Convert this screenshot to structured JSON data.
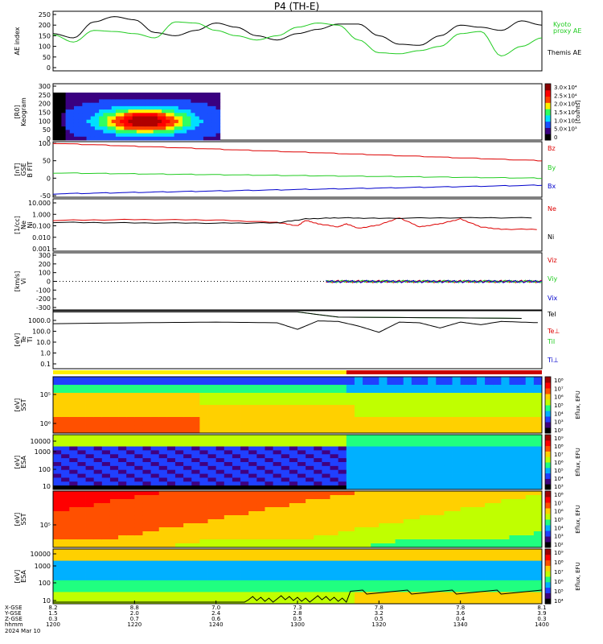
{
  "title": "P4 (TH-E)",
  "date_label": "2024 Mar 10",
  "ephemeris_labels": [
    "X-GSE",
    "Y-GSE",
    "Z-GSE",
    "hhmm"
  ],
  "ephemeris": {
    "X": [
      "8.2",
      "8.8",
      "7.0",
      "7.3",
      "7.8",
      "7.8",
      "8.1"
    ],
    "Y": [
      "1.5",
      "2.0",
      "2.4",
      "2.8",
      "3.2",
      "3.6",
      "3.9"
    ],
    "Z": [
      "0.3",
      "0.7",
      "0.6",
      "0.5",
      "0.5",
      "0.4",
      "0.3"
    ],
    "hhmm": [
      "1200",
      "1220",
      "1240",
      "1300",
      "1320",
      "1340",
      "1400"
    ]
  },
  "colors": {
    "black": "#000000",
    "green": "#22cc22",
    "red": "#dd0000",
    "blue": "#0000cc",
    "yellow": "#ffee00"
  },
  "chart_data": [
    {
      "type": "line",
      "panel": "ae",
      "ylabel": "AE index",
      "ylim": [
        0,
        250
      ],
      "yticks": [
        "0",
        "50",
        "100",
        "150",
        "200",
        "250"
      ],
      "series": [
        {
          "name": "Themis AE",
          "color": "black",
          "x": [
            0,
            5,
            10,
            15,
            20,
            25,
            30,
            35,
            40,
            45,
            50,
            55,
            60,
            65,
            70,
            75,
            80,
            85,
            90,
            95,
            100,
            105,
            110,
            115,
            120
          ],
          "values": [
            160,
            140,
            215,
            240,
            225,
            165,
            150,
            175,
            210,
            190,
            150,
            130,
            160,
            180,
            205,
            205,
            150,
            110,
            105,
            150,
            200,
            190,
            175,
            220,
            200
          ]
        },
        {
          "name": "Kyoto proxy AE",
          "color": "green",
          "x": [
            0,
            5,
            10,
            15,
            20,
            25,
            30,
            35,
            40,
            45,
            50,
            55,
            60,
            65,
            70,
            75,
            80,
            85,
            90,
            95,
            100,
            105,
            110,
            115,
            120
          ],
          "values": [
            155,
            120,
            175,
            170,
            160,
            140,
            215,
            210,
            175,
            150,
            130,
            150,
            190,
            210,
            200,
            130,
            70,
            65,
            80,
            100,
            160,
            170,
            55,
            100,
            140
          ]
        }
      ],
      "legend": [
        "Kyoto",
        "proxy AE",
        "Themis AE"
      ]
    },
    {
      "type": "heatmap",
      "panel": "keogram",
      "ylabel": "Keogram",
      "ylabel2": "[R0]",
      "ylim": [
        0,
        300
      ],
      "yticks": [
        "0",
        "50",
        "100",
        "150",
        "200",
        "250",
        "300"
      ],
      "colorbar_labels": [
        "3.0×10⁴",
        "2.5×10⁴",
        "2.0×10⁴",
        "1.5×10⁴",
        "1.0×10⁴",
        "5.0×10³",
        "0"
      ],
      "colorbar_title": "[counts]"
    },
    {
      "type": "line",
      "panel": "bfield",
      "ylabel": "B FIT",
      "ylabel2": "GSE",
      "ylabel3": "[nT]",
      "ylim": [
        -50,
        100
      ],
      "yticks": [
        "-50",
        "0",
        "50",
        "100"
      ],
      "series": [
        {
          "name": "Bz",
          "color": "red",
          "x": [
            0,
            120
          ],
          "values": [
            100,
            50
          ]
        },
        {
          "name": "By",
          "color": "green",
          "x": [
            0,
            120
          ],
          "values": [
            15,
            0
          ]
        },
        {
          "name": "Bx",
          "color": "blue",
          "x": [
            0,
            120
          ],
          "values": [
            -45,
            -20
          ]
        }
      ]
    },
    {
      "type": "line",
      "panel": "density",
      "ylabel": "Ni",
      "ylabel2": "Ne",
      "ylabel3": "[1/cc]",
      "ylim_log": [
        0.001,
        10
      ],
      "yticks": [
        "0.001",
        "0.010",
        "0.100",
        "1.000",
        "10.000"
      ],
      "series": [
        {
          "name": "Ne",
          "color": "red",
          "x": [
            0,
            20,
            40,
            55,
            60,
            62,
            65,
            70,
            72,
            75,
            80,
            85,
            90,
            95,
            100,
            105,
            110,
            120
          ],
          "values": [
            0.3,
            0.35,
            0.32,
            0.2,
            0.1,
            0.3,
            0.15,
            0.08,
            0.15,
            0.06,
            0.12,
            0.5,
            0.08,
            0.15,
            0.4,
            0.08,
            0.05,
            0.05
          ]
        },
        {
          "name": "Ni",
          "color": "black",
          "x": [
            0,
            20,
            40,
            55,
            62,
            70,
            80,
            100,
            120
          ],
          "values": [
            0.2,
            0.18,
            0.17,
            0.18,
            0.4,
            0.5,
            0.45,
            0.5,
            0.5
          ]
        }
      ]
    },
    {
      "type": "line",
      "panel": "velocity",
      "ylabel": "Vi",
      "ylabel2": "[km/s]",
      "ylim": [
        -300,
        300
      ],
      "yticks": [
        "-300",
        "-200",
        "-100",
        "0",
        "100",
        "200",
        "300"
      ],
      "series": [
        {
          "name": "Viz",
          "color": "red",
          "x": [
            67,
            120
          ],
          "values": [
            0,
            0
          ]
        },
        {
          "name": "Viy",
          "color": "green",
          "x": [
            67,
            120
          ],
          "values": [
            0,
            0
          ]
        },
        {
          "name": "Vix",
          "color": "blue",
          "x": [
            67,
            120
          ],
          "values": [
            0,
            0
          ]
        }
      ]
    },
    {
      "type": "line",
      "panel": "temperature",
      "ylabel": "Ti",
      "ylabel2": "Te",
      "ylabel3": "[eV]",
      "ylim_log": [
        0.1,
        10000
      ],
      "yticks": [
        "0.1",
        "1.0",
        "10.0",
        "100.0",
        "1000.0"
      ],
      "series": [
        {
          "name": "Tel",
          "color": "black",
          "x": [
            0,
            60,
            70,
            120
          ],
          "values": [
            6000,
            6000,
            2000,
            1500
          ]
        },
        {
          "name": "Te⊥",
          "color": "red",
          "x": [
            0,
            120
          ],
          "values": [
            null,
            null
          ]
        },
        {
          "name": "Ti‖",
          "color": "green",
          "x": [
            0,
            60,
            70,
            120
          ],
          "values": [
            6000,
            6000,
            2000,
            1500
          ]
        },
        {
          "name": "Ti⊥",
          "color": "blue",
          "x": [
            0,
            120
          ],
          "values": [
            null,
            null
          ]
        },
        {
          "name": "Ti",
          "color": "black",
          "x": [
            0,
            20,
            40,
            55,
            60,
            65,
            70,
            75,
            80,
            85,
            90,
            95,
            100,
            105,
            110,
            120
          ],
          "values": [
            500,
            600,
            700,
            600,
            150,
            900,
            800,
            300,
            80,
            700,
            600,
            200,
            700,
            400,
            800,
            600
          ]
        }
      ],
      "legend": [
        "TeI",
        "Te⊥",
        "TiI",
        "Ti⊥"
      ]
    },
    {
      "type": "heatmap",
      "panel": "sst_e",
      "ylabel": "SST",
      "ylabel2": "[eV]",
      "yticks": [
        "10⁵",
        "10⁶"
      ],
      "colorbar_labels": [
        "10⁸",
        "10⁷",
        "10⁶",
        "10⁵",
        "10⁴",
        "10³",
        "10²"
      ],
      "colorbar_title": "Eflux, EFU"
    },
    {
      "type": "heatmap",
      "panel": "esa_e",
      "ylabel": "ESA",
      "ylabel2": "[eV]",
      "yticks": [
        "10",
        "100",
        "1000",
        "10000"
      ],
      "colorbar_labels": [
        "10⁹",
        "10⁸",
        "10⁷",
        "10⁶",
        "10⁵",
        "10⁴",
        "10³"
      ],
      "colorbar_title": "Eflux, EFU"
    },
    {
      "type": "heatmap",
      "panel": "sst_i",
      "ylabel": "SST",
      "ylabel2": "[eV]",
      "yticks": [
        "10⁵"
      ],
      "colorbar_labels": [
        "10⁸",
        "10⁷",
        "10⁶",
        "10⁵",
        "10⁴",
        "10³",
        "10²"
      ],
      "colorbar_title": "Eflux, EFU"
    },
    {
      "type": "heatmap",
      "panel": "esa_i",
      "ylabel": "ESA",
      "ylabel2": "[eV]",
      "yticks": [
        "10",
        "100",
        "1000",
        "10000"
      ],
      "colorbar_labels": [
        "10⁹",
        "10⁸",
        "10⁷",
        "10⁶",
        "10⁵",
        "10⁴"
      ],
      "colorbar_title": "Eflux, EFU"
    }
  ]
}
